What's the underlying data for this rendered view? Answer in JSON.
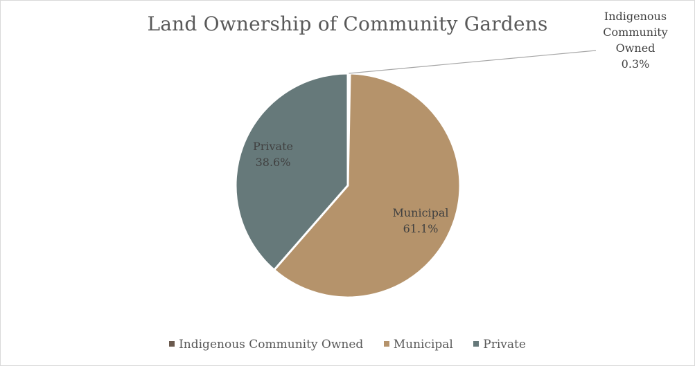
{
  "chart_data": {
    "type": "pie",
    "title": "Land Ownership of Community Gardens",
    "categories": [
      "Indigenous Community Owned",
      "Municipal",
      "Private"
    ],
    "values": [
      0.3,
      61.1,
      38.6
    ],
    "unit": "%",
    "data_labels": [
      {
        "lines": [
          "Indigenous",
          "Community",
          "Owned"
        ],
        "value_text": "0.3%"
      },
      {
        "lines": [
          "Municipal"
        ],
        "value_text": "61.1%"
      },
      {
        "lines": [
          "Private"
        ],
        "value_text": "38.6%"
      }
    ],
    "colors": [
      "#6b5a4e",
      "#b5936b",
      "#66797a"
    ],
    "legend_position": "bottom",
    "start_angle_deg": 0,
    "direction": "clockwise"
  },
  "legend": {
    "items": [
      {
        "label": "Indigenous Community Owned",
        "color": "#6b5a4e"
      },
      {
        "label": "Municipal",
        "color": "#b5936b"
      },
      {
        "label": "Private",
        "color": "#66797a"
      }
    ]
  }
}
